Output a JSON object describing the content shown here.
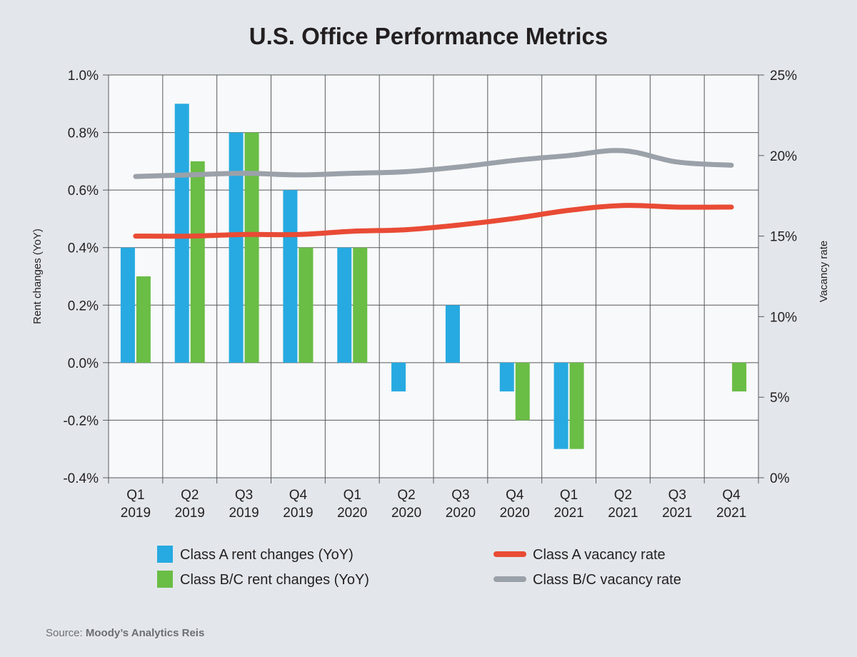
{
  "chart_data": {
    "type": "bar",
    "title": "U.S. Office Performance Metrics",
    "categories": [
      [
        "Q1",
        "2019"
      ],
      [
        "Q2",
        "2019"
      ],
      [
        "Q3",
        "2019"
      ],
      [
        "Q4",
        "2019"
      ],
      [
        "Q1",
        "2020"
      ],
      [
        "Q2",
        "2020"
      ],
      [
        "Q3",
        "2020"
      ],
      [
        "Q4",
        "2020"
      ],
      [
        "Q1",
        "2021"
      ],
      [
        "Q2",
        "2021"
      ],
      [
        "Q3",
        "2021"
      ],
      [
        "Q4",
        "2021"
      ]
    ],
    "ylabel": "Rent changes (YoY)",
    "ylabel_right": "Vacancy rate",
    "ylim": [
      -0.4,
      1.0
    ],
    "yticks": [
      "1.0%",
      "0.8%",
      "0.6%",
      "0.4%",
      "0.2%",
      "0.0%",
      "-0.2%",
      "-0.4%"
    ],
    "ylim_right": [
      0,
      25
    ],
    "yticks_right": [
      "25%",
      "20%",
      "15%",
      "10%",
      "5%",
      "0%"
    ],
    "grid": true,
    "legend_position": "bottom",
    "bar_series": [
      {
        "name": "Class A rent changes (YoY)",
        "color": "#27aae1",
        "values": [
          0.4,
          0.9,
          0.8,
          0.6,
          0.4,
          -0.1,
          0.2,
          -0.1,
          -0.3,
          0.0,
          0.0,
          0.0
        ]
      },
      {
        "name": "Class B/C rent changes (YoY)",
        "color": "#6abd45",
        "values": [
          0.3,
          0.7,
          0.8,
          0.4,
          0.4,
          0.0,
          0.0,
          -0.2,
          -0.3,
          0.0,
          0.0,
          -0.1
        ]
      }
    ],
    "line_series": [
      {
        "name": "Class A vacancy rate",
        "color": "#e94b35",
        "axis": "right",
        "values": [
          15.0,
          15.0,
          15.1,
          15.1,
          15.3,
          15.4,
          15.7,
          16.1,
          16.6,
          16.9,
          16.8,
          16.8
        ]
      },
      {
        "name": "Class B/C vacancy rate",
        "color": "#9ba1a9",
        "axis": "right",
        "values": [
          18.7,
          18.8,
          18.9,
          18.8,
          18.9,
          19.0,
          19.3,
          19.7,
          20.0,
          20.3,
          19.6,
          19.4
        ]
      }
    ]
  },
  "source": {
    "prefix": "Source: ",
    "name": "Moody’s Analytics Reis"
  }
}
